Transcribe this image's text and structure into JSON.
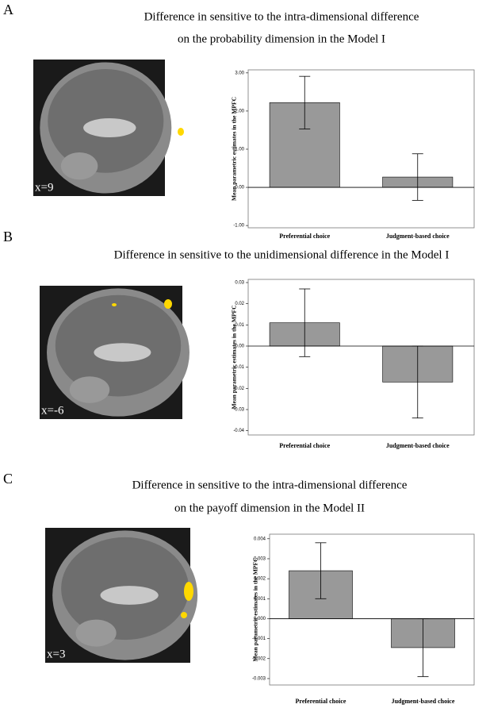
{
  "chart_data": [
    {
      "type": "bar",
      "panel": "A",
      "title": [
        "Difference in sensitive to the intra-dimensional difference",
        "on the probability dimension in the Model I"
      ],
      "image_label": "x=9",
      "ylabel": "Mean parametric estimates in the MPFC",
      "categories": [
        "Preferential choice",
        "Judgment-based choice"
      ],
      "values": [
        2.22,
        0.27
      ],
      "errors": [
        0.69,
        0.61
      ],
      "color": "#999999",
      "ylim": [
        -1.06,
        3.08
      ],
      "yticks": [
        {
          "value": -1,
          "label": "-1.00"
        },
        {
          "value": 0,
          "label": "0.00"
        },
        {
          "value": 1,
          "label": "1.00"
        },
        {
          "value": 2,
          "label": "2.00"
        },
        {
          "value": 3,
          "label": "3.00"
        }
      ]
    },
    {
      "type": "bar",
      "panel": "B",
      "title": [
        "Difference in sensitive to the unidimensional difference in the Model I"
      ],
      "image_label": "x=-6",
      "ylabel": "Mean parametric estimates in the MPFC",
      "categories": [
        "Preferential choice",
        "Judgment-based choice"
      ],
      "values": [
        0.011,
        -0.017
      ],
      "errors": [
        0.016,
        0.017
      ],
      "color": "#999999",
      "ylim": [
        -0.042,
        0.0315
      ],
      "yticks": [
        -0.04,
        -0.03,
        -0.02,
        -0.01,
        {
          "value": 0,
          "label": "0.00"
        },
        0.01,
        0.02,
        0.03
      ]
    },
    {
      "type": "bar",
      "panel": "C",
      "title": [
        "Difference in sensitive to the intra-dimensional difference",
        "on the payoff dimension in the Model II"
      ],
      "image_label": "x=3",
      "ylabel": "Mean parametric estimates in the MPFC",
      "categories": [
        "Preferential choice",
        "Judgment-based choice"
      ],
      "values": [
        0.0024,
        -0.00145
      ],
      "errors": [
        0.0014,
        0.00145
      ],
      "color": "#999999",
      "ylim": [
        -0.00332,
        0.00423
      ],
      "yticks": [
        -0.003,
        -0.002,
        -0.001,
        {
          "value": 0,
          "label": "0.000"
        },
        0.001,
        0.002,
        0.003,
        0.004
      ]
    }
  ]
}
